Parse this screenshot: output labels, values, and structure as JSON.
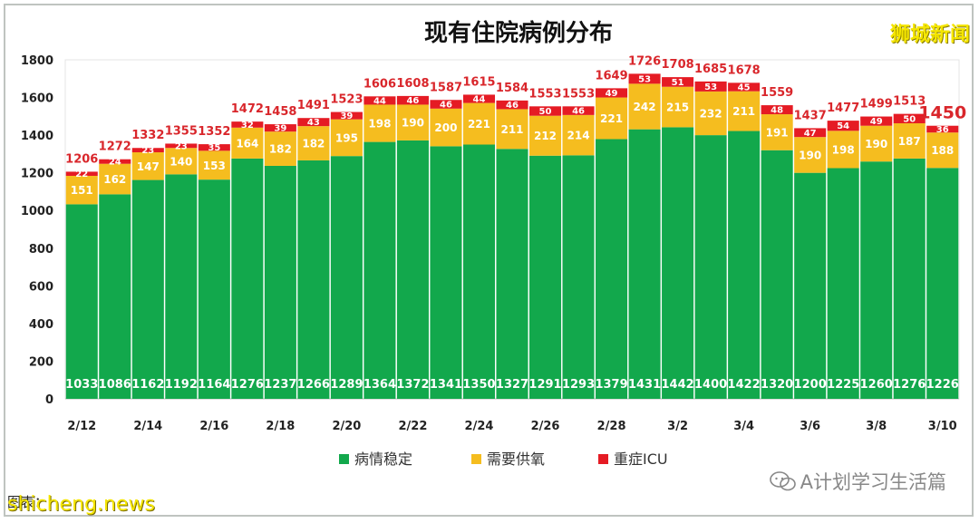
{
  "watermarks": {
    "top_right": "狮城新闻",
    "bottom_right": "A计划学习生活篇",
    "bottom_left": "shicheng.news"
  },
  "source_text": "图表：",
  "colors": {
    "stable": "#12a84c",
    "oxygen": "#f5bd1f",
    "icu": "#e51b24",
    "total_label": "#d9262b"
  },
  "chart_data": {
    "type": "bar",
    "stacked": true,
    "title": "现有住院病例分布",
    "xlabel": "",
    "ylabel": "",
    "ylim": [
      0,
      1800
    ],
    "yticks": [
      0,
      200,
      400,
      600,
      800,
      1000,
      1200,
      1400,
      1600,
      1800
    ],
    "grid": false,
    "legend_position": "bottom",
    "categories": [
      "2/12",
      "2/13",
      "2/14",
      "2/15",
      "2/16",
      "2/17",
      "2/18",
      "2/19",
      "2/20",
      "2/21",
      "2/22",
      "2/23",
      "2/24",
      "2/25",
      "2/26",
      "2/27",
      "2/28",
      "3/1",
      "3/2",
      "3/3",
      "3/4",
      "3/5",
      "3/6",
      "3/7",
      "3/8",
      "3/9",
      "3/10"
    ],
    "x_tick_labels": [
      "2/12",
      "",
      "2/14",
      "",
      "2/16",
      "",
      "2/18",
      "",
      "2/20",
      "",
      "2/22",
      "",
      "2/24",
      "",
      "2/26",
      "",
      "2/28",
      "",
      "3/2",
      "",
      "3/4",
      "",
      "3/6",
      "",
      "3/8",
      "",
      "3/10"
    ],
    "series": [
      {
        "name": "病情稳定",
        "values": [
          1033,
          1086,
          1162,
          1192,
          1164,
          1276,
          1237,
          1266,
          1289,
          1364,
          1372,
          1341,
          1350,
          1327,
          1291,
          1293,
          1379,
          1431,
          1442,
          1400,
          1422,
          1320,
          1200,
          1225,
          1260,
          1276,
          1226
        ]
      },
      {
        "name": "需要供氧",
        "values": [
          151,
          162,
          147,
          140,
          153,
          164,
          182,
          182,
          195,
          198,
          190,
          200,
          221,
          211,
          212,
          214,
          221,
          242,
          215,
          232,
          211,
          191,
          190,
          198,
          190,
          187,
          188
        ]
      },
      {
        "name": "重症ICU",
        "values": [
          22,
          24,
          23,
          23,
          35,
          32,
          39,
          43,
          39,
          44,
          46,
          46,
          44,
          46,
          50,
          46,
          49,
          53,
          51,
          53,
          45,
          48,
          47,
          54,
          49,
          50,
          36
        ]
      }
    ],
    "totals": [
      1206,
      1272,
      1332,
      1355,
      1352,
      1472,
      1458,
      1491,
      1523,
      1606,
      1608,
      1587,
      1615,
      1584,
      1553,
      1553,
      1649,
      1726,
      1708,
      1685,
      1678,
      1559,
      1437,
      1477,
      1499,
      1513,
      1450
    ]
  }
}
